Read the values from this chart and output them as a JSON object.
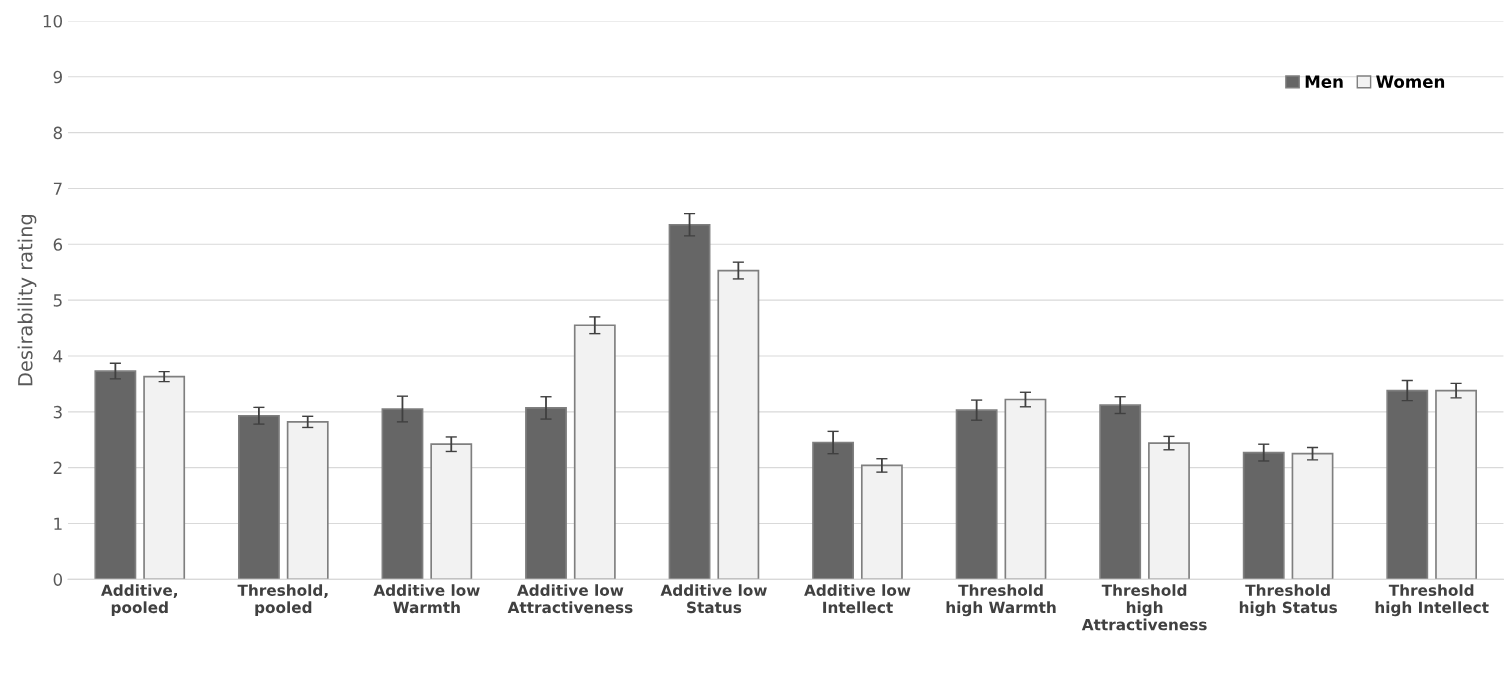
{
  "chart_data": {
    "type": "bar",
    "ylabel": "Desirability rating",
    "categories": [
      "Additive,\npooled",
      "Threshold,\npooled",
      "Additive low\nWarmth",
      "Additive low\nAttractiveness",
      "Additive low\nStatus",
      "Additive low\nIntellect",
      "Threshold\nhigh Warmth",
      "Threshold\nhigh\nAttractiveness",
      "Threshold\nhigh Status",
      "Threshold\nhigh Intellect"
    ],
    "series": [
      {
        "name": "Men",
        "color": "#666666",
        "values": [
          3.73,
          2.93,
          3.05,
          3.07,
          6.35,
          2.45,
          3.03,
          3.12,
          2.27,
          3.38
        ],
        "errors": [
          0.14,
          0.15,
          0.23,
          0.2,
          0.2,
          0.2,
          0.18,
          0.15,
          0.15,
          0.18
        ]
      },
      {
        "name": "Women",
        "color": "#f2f2f2",
        "values": [
          3.63,
          2.82,
          2.42,
          4.55,
          5.53,
          2.04,
          3.22,
          2.44,
          2.25,
          3.38
        ],
        "errors": [
          0.09,
          0.1,
          0.13,
          0.15,
          0.15,
          0.12,
          0.13,
          0.12,
          0.11,
          0.13
        ]
      }
    ],
    "ylim": [
      0,
      10
    ],
    "yticks": [
      0,
      1,
      2,
      3,
      4,
      5,
      6,
      7,
      8,
      9,
      10
    ],
    "grid": "y",
    "legend": "top right"
  }
}
